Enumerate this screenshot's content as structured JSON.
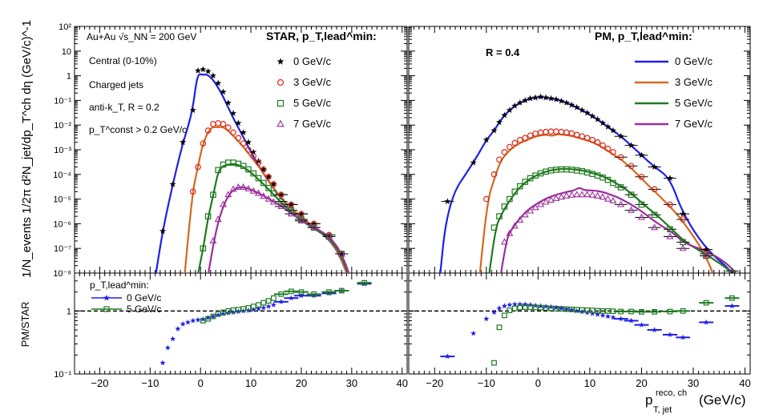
{
  "chart_data": {
    "type": "scatter",
    "x_axis": {
      "label": "p_T, jet^reco, ch (GeV/c)",
      "label_main": "p",
      "label_sub": "T, jet",
      "label_sup": "reco, ch",
      "label_units": "(GeV/c)",
      "range": [
        -25,
        41
      ],
      "ticks": [
        "−20",
        "−10",
        "0",
        "10",
        "20",
        "30",
        "40"
      ]
    },
    "y_axis_top": {
      "label": "1/N_events 1/2π d²N_jet/dp_T^ch dη (GeV/c)^-1",
      "scale": "log",
      "range": [
        1e-08,
        100
      ],
      "ticks": [
        "10⁻⁸",
        "10⁻⁷",
        "10⁻⁶",
        "10⁻⁵",
        "10⁻⁴",
        "10⁻³",
        "10⁻²",
        "10⁻¹",
        "1",
        "10",
        "10²"
      ]
    },
    "y_axis_bottom": {
      "label": "PM/STAR",
      "scale": "log",
      "range": [
        0.1,
        4
      ],
      "ticks": [
        "10⁻¹",
        "1"
      ],
      "reference_line": 1
    },
    "annotations_left": {
      "system": "Au+Au √s_NN = 200 GeV",
      "centrality": "Central (0-10%)",
      "jets": "Charged jets",
      "algo": "anti-k_T, R = 0.2",
      "cut": "p_T^const > 0.2 GeV/c"
    },
    "annotations_right": {
      "radius": "R = 0.4"
    },
    "legend_star_title": "STAR, p_T,lead^min:",
    "legend_pm_title": "PM, p_T,lead^min:",
    "legend_ratio_title": "p_T,lead^min:",
    "legend_entries": [
      {
        "name": "0 GeV/c",
        "marker": "star",
        "line_color": "#1f1fe8"
      },
      {
        "name": "3 GeV/c",
        "marker": "circle",
        "line_color": "#d2691e",
        "marker_color": "#e0261a"
      },
      {
        "name": "5 GeV/c",
        "marker": "square",
        "line_color": "#1f7a1f"
      },
      {
        "name": "7 GeV/c",
        "marker": "triangle",
        "line_color": "#9b2f9b"
      }
    ],
    "ratio_legend": [
      {
        "name": "0 GeV/c",
        "marker": "star",
        "color": "#1f1fe8"
      },
      {
        "name": "5 GeV/c",
        "marker": "square",
        "color": "#1f7a1f"
      }
    ],
    "panels": [
      {
        "id": "R=0.2",
        "star_data": [
          {
            "pt_lead_min": 0,
            "x": [
              -7.5,
              -5.5,
              -3.5,
              -1.5,
              -0.5,
              0.5,
              1.5,
              2.5,
              3.5,
              4.5,
              5.5,
              6.5,
              7.5,
              8.5,
              9.5,
              10.5,
              11.5,
              12.5,
              13.5,
              14.5,
              16,
              18,
              20,
              22.5,
              25.5,
              28
            ],
            "y": [
              5e-07,
              4e-05,
              0.002,
              0.04,
              1.6,
              1.8,
              1.5,
              1.0,
              0.5,
              0.22,
              0.08,
              0.03,
              0.012,
              0.005,
              0.002,
              0.0008,
              0.00035,
              0.00016,
              8e-05,
              4e-05,
              1.5e-05,
              6e-06,
              2.5e-06,
              1e-06,
              3.5e-07,
              6e-08
            ]
          },
          {
            "pt_lead_min": 3,
            "x": [
              -1.5,
              -0.5,
              0.5,
              1.5,
              2.5,
              3.5,
              4.5,
              5.5,
              6.5,
              7.5,
              8.5,
              9.5,
              10.5,
              11.5,
              12.5,
              13.5,
              14.5,
              16,
              18,
              20,
              22.5,
              25.5,
              28
            ],
            "y": [
              2e-05,
              0.0002,
              0.0018,
              0.006,
              0.011,
              0.012,
              0.011,
              0.008,
              0.005,
              0.003,
              0.0018,
              0.001,
              0.00055,
              0.0003,
              0.00016,
              8e-05,
              4e-05,
              1.5e-05,
              6e-06,
              2.5e-06,
              1e-06,
              3.5e-07,
              6e-08
            ]
          },
          {
            "pt_lead_min": 5,
            "x": [
              0.5,
              1.5,
              2.5,
              3.5,
              4.5,
              5.5,
              6.5,
              7.5,
              8.5,
              9.5,
              10.5,
              11.5,
              12.5,
              13.5,
              14.5,
              16,
              18,
              20,
              22.5,
              25.5,
              28
            ],
            "y": [
              1e-07,
              2e-06,
              1.5e-05,
              0.00015,
              0.00025,
              0.0003,
              0.0003,
              0.00027,
              0.00022,
              0.00016,
              0.00011,
              7e-05,
              4.5e-05,
              2.8e-05,
              1.7e-05,
              8e-06,
              3.5e-06,
              1.5e-06,
              7e-07,
              3e-07,
              6e-08
            ]
          },
          {
            "pt_lead_min": 7,
            "x": [
              2.5,
              3.5,
              4.5,
              5.5,
              6.5,
              7.5,
              8.5,
              9.5,
              10.5,
              11.5,
              12.5,
              13.5,
              14.5,
              16,
              18,
              20,
              22.5,
              25.5,
              28
            ],
            "y": [
              2e-07,
              1.5e-06,
              6e-06,
              1.5e-05,
              2.5e-05,
              3e-05,
              3e-05,
              2.6e-05,
              2.1e-05,
              1.7e-05,
              1.3e-05,
              1e-05,
              7.5e-06,
              5e-06,
              2.5e-06,
              1.3e-06,
              7e-07,
              3e-07,
              6e-08
            ]
          }
        ],
        "pm_curves": [
          {
            "pt_lead_min": 0,
            "peak_x": 0.0,
            "peak_y": 1.1
          },
          {
            "pt_lead_min": 3,
            "peak_x": 3.0,
            "peak_y": 0.008
          },
          {
            "pt_lead_min": 5,
            "peak_x": 5.5,
            "peak_y": 0.00025
          },
          {
            "pt_lead_min": 7,
            "peak_x": 8.0,
            "peak_y": 3e-05
          }
        ],
        "ratio": [
          {
            "pt_lead_min": 0,
            "x": [
              -7.5,
              -6.5,
              -5.5,
              -4.5,
              -3.5,
              -2.5,
              -1.5,
              -0.5,
              0.5,
              1.5,
              2.5,
              3.5,
              4.5,
              5.5,
              6.5,
              7.5,
              8.5,
              9.5,
              10.5,
              11.5,
              12.5,
              13.5,
              14.5,
              16,
              18,
              20,
              22.5,
              25.5,
              28,
              32.5
            ],
            "y": [
              0.15,
              0.26,
              0.36,
              0.52,
              0.62,
              0.66,
              0.7,
              0.72,
              0.74,
              0.78,
              0.82,
              0.86,
              0.9,
              0.93,
              0.95,
              0.98,
              1.0,
              1.02,
              1.05,
              1.08,
              1.12,
              1.18,
              1.25,
              1.4,
              1.6,
              1.75,
              1.75,
              1.9,
              2.1,
              2.7
            ]
          },
          {
            "pt_lead_min": 5,
            "x": [
              0.5,
              1.5,
              2.5,
              3.5,
              4.5,
              5.5,
              6.5,
              7.5,
              8.5,
              9.5,
              10.5,
              11.5,
              12.5,
              13.5,
              14.5,
              16,
              18,
              20,
              22.5,
              25.5,
              28,
              32.5
            ],
            "y": [
              0.7,
              0.75,
              0.82,
              0.9,
              0.95,
              1.0,
              1.03,
              1.05,
              1.08,
              1.12,
              1.18,
              1.25,
              1.35,
              1.45,
              1.6,
              1.85,
              2.05,
              2.0,
              1.85,
              2.0,
              2.1,
              2.8
            ]
          }
        ]
      },
      {
        "id": "R=0.4",
        "star_data": [
          {
            "pt_lead_min": 0,
            "x": [
              -17.5,
              -12.5,
              -10,
              -8.5,
              -7.5,
              -6.5,
              -5.5,
              -4.5,
              -3.5,
              -2.5,
              -1.5,
              -0.5,
              0.5,
              1.5,
              2.5,
              3.5,
              4.5,
              5.5,
              6.5,
              7.5,
              8.5,
              9.5,
              10.5,
              11.5,
              12.5,
              13.5,
              14.5,
              16,
              18,
              20,
              22.5,
              25.5,
              28,
              32.5,
              37.5
            ],
            "y": [
              8e-06,
              0.0003,
              0.0025,
              0.006,
              0.013,
              0.025,
              0.04,
              0.06,
              0.08,
              0.1,
              0.12,
              0.13,
              0.14,
              0.13,
              0.12,
              0.11,
              0.095,
              0.08,
              0.065,
              0.052,
              0.04,
              0.031,
              0.023,
              0.017,
              0.012,
              0.0085,
              0.006,
              0.0035,
              0.0015,
              0.0006,
              0.0002,
              7e-05,
              2.5e-06,
              9e-08,
              1.2e-08
            ]
          },
          {
            "pt_lead_min": 3,
            "x": [
              -10,
              -8.5,
              -7.5,
              -6.5,
              -5.5,
              -4.5,
              -3.5,
              -2.5,
              -1.5,
              -0.5,
              0.5,
              1.5,
              2.5,
              3.5,
              4.5,
              5.5,
              6.5,
              7.5,
              8.5,
              9.5,
              10.5,
              11.5,
              12.5,
              13.5,
              14.5,
              16,
              18,
              20,
              22.5,
              25.5,
              28,
              32.5
            ],
            "y": [
              1e-05,
              0.0001,
              0.0004,
              0.0008,
              0.0013,
              0.0019,
              0.0025,
              0.003,
              0.0038,
              0.0045,
              0.005,
              0.0053,
              0.0055,
              0.0055,
              0.0053,
              0.005,
              0.0046,
              0.004,
              0.0035,
              0.003,
              0.0025,
              0.002,
              0.0015,
              0.0011,
              0.0008,
              0.0005,
              0.00022,
              8e-05,
              2.5e-05,
              6e-06,
              1.5e-06,
              6e-08
            ]
          },
          {
            "pt_lead_min": 5,
            "x": [
              -8.5,
              -7.5,
              -6.5,
              -5.5,
              -4.5,
              -3.5,
              -2.5,
              -1.5,
              -0.5,
              0.5,
              1.5,
              2.5,
              3.5,
              4.5,
              5.5,
              6.5,
              7.5,
              8.5,
              9.5,
              10.5,
              11.5,
              12.5,
              13.5,
              14.5,
              16,
              18,
              20,
              22.5,
              25.5,
              28,
              32.5,
              37.5
            ],
            "y": [
              7e-07,
              2e-06,
              5e-06,
              1e-05,
              2e-05,
              3.3e-05,
              5e-05,
              7e-05,
              9e-05,
              0.00011,
              0.00013,
              0.000145,
              0.000155,
              0.00016,
              0.00016,
              0.000155,
              0.000145,
              0.000135,
              0.00012,
              0.000105,
              9e-05,
              7.5e-05,
              6e-05,
              4.5e-05,
              3e-05,
              1.5e-05,
              6e-06,
              2.3e-06,
              6e-07,
              1.8e-07,
              5e-08,
              1e-08
            ]
          },
          {
            "pt_lead_min": 7,
            "x": [
              -6.5,
              -5.5,
              -4.5,
              -3.5,
              -2.5,
              -1.5,
              -0.5,
              0.5,
              1.5,
              2.5,
              3.5,
              4.5,
              5.5,
              6.5,
              7.5,
              8.5,
              9.5,
              10.5,
              11.5,
              12.5,
              13.5,
              14.5,
              16,
              18,
              20,
              22.5,
              25.5,
              28,
              32.5,
              37.5
            ],
            "y": [
              1.8e-07,
              4e-07,
              8e-07,
              1.4e-06,
              2.3e-06,
              3.3e-06,
              4.5e-06,
              6e-06,
              7.5e-06,
              9e-06,
              1.05e-05,
              1.2e-05,
              1.35e-05,
              1.45e-05,
              1.5e-05,
              1.5e-05,
              1.5e-05,
              1.45e-05,
              1.35e-05,
              1.2e-05,
              1e-05,
              8.5e-06,
              6e-06,
              3.5e-06,
              1.8e-06,
              7e-07,
              3e-07,
              1e-07,
              5e-08,
              1e-08
            ]
          }
        ],
        "pm_curves": [
          {
            "pt_lead_min": 0,
            "peak_x": 0.5,
            "peak_y": 0.14
          },
          {
            "pt_lead_min": 3,
            "peak_x": 3.0,
            "peak_y": 0.0036
          },
          {
            "pt_lead_min": 5,
            "peak_x": 5.5,
            "peak_y": 0.00017
          },
          {
            "pt_lead_min": 7,
            "peak_x": 9.0,
            "peak_y": 3e-05
          }
        ],
        "ratio": [
          {
            "pt_lead_min": 0,
            "x": [
              -17.5,
              -12.5,
              -10,
              -8.5,
              -7.5,
              -6.5,
              -5.5,
              -4.5,
              -3.5,
              -2.5,
              -1.5,
              -0.5,
              0.5,
              1.5,
              2.5,
              3.5,
              4.5,
              5.5,
              6.5,
              7.5,
              8.5,
              9.5,
              10.5,
              11.5,
              12.5,
              13.5,
              14.5,
              16,
              18,
              20,
              22.5,
              25.5,
              28,
              32.5,
              37.5
            ],
            "y": [
              0.19,
              0.44,
              0.75,
              0.95,
              1.1,
              1.2,
              1.25,
              1.28,
              1.28,
              1.27,
              1.25,
              1.22,
              1.2,
              1.18,
              1.16,
              1.13,
              1.1,
              1.07,
              1.04,
              1.0,
              0.97,
              0.94,
              0.91,
              0.88,
              0.85,
              0.82,
              0.79,
              0.75,
              0.7,
              0.6,
              0.5,
              0.42,
              0.38,
              0.66,
              1.2
            ]
          },
          {
            "pt_lead_min": 5,
            "x": [
              -8.5,
              -7.5,
              -6.5,
              -5.5,
              -4.5,
              -3.5,
              -2.5,
              -1.5,
              -0.5,
              0.5,
              1.5,
              2.5,
              3.5,
              4.5,
              5.5,
              6.5,
              7.5,
              8.5,
              9.5,
              10.5,
              11.5,
              12.5,
              13.5,
              14.5,
              16,
              18,
              20,
              22.5,
              25.5,
              28,
              32.5,
              37.5
            ],
            "y": [
              0.15,
              0.55,
              0.85,
              1.02,
              1.1,
              1.14,
              1.15,
              1.15,
              1.14,
              1.13,
              1.12,
              1.1,
              1.09,
              1.08,
              1.07,
              1.06,
              1.05,
              1.04,
              1.03,
              1.02,
              1.01,
              1.0,
              1.0,
              0.99,
              0.98,
              0.98,
              0.97,
              0.97,
              0.98,
              1.0,
              1.35,
              1.6
            ]
          }
        ]
      }
    ]
  }
}
